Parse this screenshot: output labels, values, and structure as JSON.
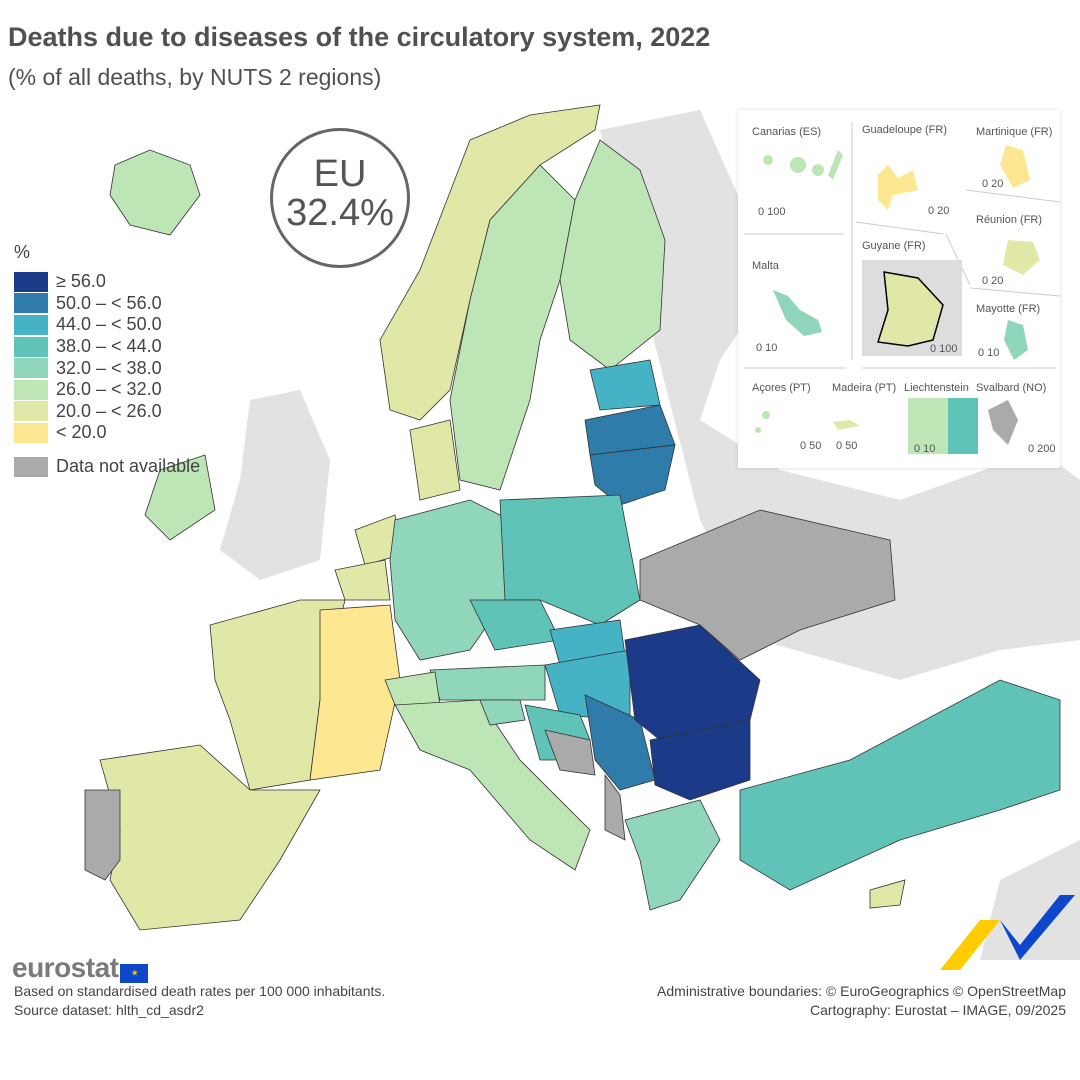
{
  "title": "Deaths due to diseases of the circulatory system, 2022",
  "subtitle": "(% of all deaths, by NUTS 2 regions)",
  "eu_badge": {
    "label": "EU",
    "value": "32.4%"
  },
  "legend": {
    "unit": "%",
    "classes": [
      {
        "label": "≥ 56.0",
        "color": "#1b3a87"
      },
      {
        "label": "50.0 – < 56.0",
        "color": "#2f7ba9"
      },
      {
        "label": "44.0 – < 50.0",
        "color": "#45b3c5"
      },
      {
        "label": "38.0 – < 44.0",
        "color": "#5fc3b7"
      },
      {
        "label": "32.0 – < 38.0",
        "color": "#8fd6ba"
      },
      {
        "label": "26.0 – < 32.0",
        "color": "#bee5b6"
      },
      {
        "label": "20.0 – < 26.0",
        "color": "#e1e8a7"
      },
      {
        "label": "< 20.0",
        "color": "#fde790"
      }
    ],
    "not_available": {
      "label": "Data not available",
      "color": "#aaaaaa"
    }
  },
  "map_regions": [
    {
      "name": "Iceland",
      "class": 5
    },
    {
      "name": "Norway",
      "class": 6
    },
    {
      "name": "Sweden",
      "class": 5
    },
    {
      "name": "Finland",
      "class": 5
    },
    {
      "name": "Estonia",
      "class": 2
    },
    {
      "name": "Latvia",
      "class": 1
    },
    {
      "name": "Lithuania",
      "class": 1
    },
    {
      "name": "Ireland",
      "class": 5
    },
    {
      "name": "Denmark",
      "class": 6
    },
    {
      "name": "Netherlands",
      "class": 6
    },
    {
      "name": "Belgium",
      "class": 6
    },
    {
      "name": "France",
      "class": 6
    },
    {
      "name": "France east",
      "class": 7
    },
    {
      "name": "Spain",
      "class": 6
    },
    {
      "name": "Portugal",
      "class": "na"
    },
    {
      "name": "Germany",
      "class": 4
    },
    {
      "name": "Poland",
      "class": 3
    },
    {
      "name": "Czechia",
      "class": 3
    },
    {
      "name": "Slovakia",
      "class": 2
    },
    {
      "name": "Hungary",
      "class": 2
    },
    {
      "name": "Austria",
      "class": 4
    },
    {
      "name": "Switzerland",
      "class": 5
    },
    {
      "name": "Italy",
      "class": 5
    },
    {
      "name": "Slovenia",
      "class": 4
    },
    {
      "name": "Croatia",
      "class": 3
    },
    {
      "name": "Serbia",
      "class": 1
    },
    {
      "name": "Romania",
      "class": 0
    },
    {
      "name": "Bulgaria",
      "class": 0
    },
    {
      "name": "Greece",
      "class": 4
    },
    {
      "name": "Türkiye",
      "class": 3
    },
    {
      "name": "Cyprus",
      "class": 6
    },
    {
      "name": "Ukraine",
      "class": "na"
    },
    {
      "name": "Bosnia and Herzegovina",
      "class": "na"
    },
    {
      "name": "Albania",
      "class": "na"
    }
  ],
  "insets": [
    {
      "label": "Canarias (ES)",
      "scale": "0  100"
    },
    {
      "label": "Guadeloupe (FR)",
      "scale": "0  20"
    },
    {
      "label": "Martinique (FR)",
      "scale": "0  20"
    },
    {
      "label": "Réunion (FR)",
      "scale": "0  20"
    },
    {
      "label": "Malta",
      "scale": "0  10"
    },
    {
      "label": "Guyane (FR)",
      "scale": "0   100"
    },
    {
      "label": "Mayotte (FR)",
      "scale": "0 10"
    },
    {
      "label": "Açores (PT)",
      "scale": "0 50"
    },
    {
      "label": "Madeira (PT)",
      "scale": "0    50"
    },
    {
      "label": "Liechtenstein",
      "scale": "0  10"
    },
    {
      "label": "Svalbard (NO)",
      "scale": "0    200"
    }
  ],
  "footer": {
    "logo": "eurostat",
    "note": "Based on standardised death rates per 100 000 inhabitants.",
    "source": "Source dataset: hlth_cd_asdr2",
    "boundaries": "Administrative boundaries: © EuroGeographics © OpenStreetMap",
    "cartography": "Cartography: Eurostat – IMAGE, 09/2025"
  }
}
